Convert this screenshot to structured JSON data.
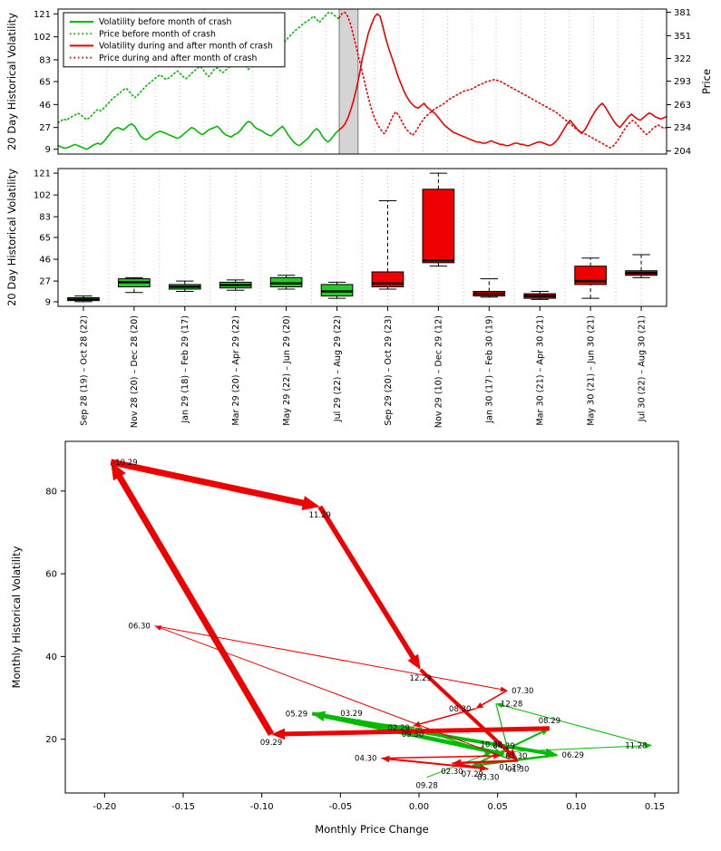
{
  "page": {
    "background": "#ffffff"
  },
  "colors": {
    "before": "#00BB00",
    "after": "#EE0000",
    "band": "#d4d4d4",
    "axis": "#000000",
    "grid": "#c8c8c8"
  },
  "chart_data": [
    {
      "type": "line",
      "title": "",
      "ylabel": "20 Day Historical Volatility",
      "y2label": "Price",
      "xlim": [
        0,
        100
      ],
      "ylim": [
        5,
        125
      ],
      "y2lim": [
        200,
        385
      ],
      "yticks": [
        9,
        27,
        46,
        65,
        83,
        102,
        121
      ],
      "y2ticks": [
        204,
        234,
        263,
        293,
        322,
        351,
        381
      ],
      "grid": true,
      "crash_band": [
        46.2,
        49.3
      ],
      "legend_position": "top-left",
      "legend": [
        {
          "label": "Volatility before month of crash",
          "color": "#00BB00",
          "style": "solid"
        },
        {
          "label": "Price before month of crash",
          "color": "#00BB00",
          "style": "dotted"
        },
        {
          "label": "Volatility during and after month of crash",
          "color": "#EE0000",
          "style": "solid"
        },
        {
          "label": "Price during and after month of crash",
          "color": "#EE0000",
          "style": "dotted"
        }
      ],
      "series": [
        {
          "name": "volatility-before",
          "axis": "left",
          "color": "#00BB00",
          "style": "solid",
          "x_start": 0,
          "x_end": 46.2,
          "values": [
            12,
            11,
            10,
            10,
            11,
            12,
            13,
            12,
            11,
            10,
            9,
            10,
            12,
            13,
            14,
            13,
            15,
            18,
            21,
            24,
            26,
            27,
            26,
            25,
            27,
            29,
            30,
            28,
            24,
            20,
            18,
            17,
            18,
            20,
            22,
            23,
            24,
            23,
            22,
            21,
            20,
            19,
            18,
            19,
            21,
            23,
            25,
            27,
            26,
            24,
            22,
            21,
            23,
            25,
            26,
            27,
            28,
            26,
            23,
            21,
            20,
            19,
            21,
            22,
            24,
            27,
            30,
            32,
            31,
            28,
            26,
            25,
            24,
            22,
            21,
            20,
            22,
            24,
            26,
            28,
            25,
            21,
            18,
            15,
            13,
            12,
            14,
            16,
            18,
            21,
            24,
            26,
            24,
            20,
            17,
            15,
            17,
            20,
            23,
            25
          ]
        },
        {
          "name": "price-before",
          "axis": "right",
          "color": "#00BB00",
          "style": "dotted",
          "x_start": 0,
          "x_end": 46.2,
          "values": [
            240,
            242,
            245,
            243,
            246,
            248,
            250,
            252,
            250,
            247,
            244,
            246,
            250,
            254,
            257,
            255,
            258,
            262,
            266,
            270,
            273,
            276,
            279,
            282,
            284,
            280,
            276,
            272,
            275,
            279,
            283,
            287,
            290,
            293,
            296,
            299,
            301,
            298,
            295,
            297,
            300,
            303,
            306,
            303,
            299,
            296,
            299,
            303,
            306,
            309,
            312,
            308,
            303,
            299,
            303,
            308,
            310,
            307,
            304,
            307,
            310,
            313,
            316,
            319,
            322,
            318,
            313,
            308,
            312,
            317,
            322,
            326,
            324,
            320,
            317,
            321,
            326,
            331,
            336,
            340,
            344,
            348,
            352,
            356,
            359,
            362,
            365,
            368,
            370,
            373,
            376,
            372,
            368,
            372,
            376,
            380,
            381,
            378,
            375,
            372
          ]
        },
        {
          "name": "volatility-after",
          "axis": "left",
          "color": "#EE0000",
          "style": "solid",
          "x_start": 46.2,
          "x_end": 100,
          "values": [
            25,
            27,
            30,
            35,
            42,
            50,
            60,
            72,
            85,
            95,
            105,
            112,
            118,
            121,
            119,
            110,
            100,
            92,
            85,
            78,
            70,
            64,
            58,
            53,
            49,
            46,
            44,
            43,
            45,
            47,
            44,
            42,
            40,
            38,
            35,
            32,
            29,
            27,
            25,
            23,
            22,
            21,
            20,
            19,
            18,
            17,
            16,
            15,
            15,
            14,
            14,
            15,
            16,
            15,
            14,
            13,
            13,
            12,
            12,
            13,
            14,
            14,
            13,
            13,
            12,
            12,
            13,
            14,
            15,
            15,
            14,
            13,
            12,
            13,
            15,
            18,
            22,
            26,
            30,
            33,
            30,
            27,
            24,
            22,
            25,
            29,
            34,
            38,
            42,
            45,
            47,
            44,
            40,
            36,
            32,
            29,
            27,
            30,
            33,
            36,
            38,
            36,
            34,
            33,
            35,
            37,
            39,
            38,
            36,
            35,
            34,
            35,
            36
          ]
        },
        {
          "name": "price-after",
          "axis": "right",
          "color": "#EE0000",
          "style": "dotted",
          "x_start": 46.2,
          "x_end": 100,
          "values": [
            374,
            379,
            381,
            376,
            366,
            352,
            337,
            322,
            307,
            292,
            277,
            263,
            251,
            242,
            235,
            230,
            226,
            232,
            240,
            248,
            254,
            250,
            243,
            236,
            231,
            227,
            224,
            228,
            234,
            240,
            245,
            249,
            252,
            255,
            258,
            260,
            262,
            264,
            267,
            270,
            272,
            274,
            276,
            278,
            280,
            281,
            282,
            283,
            285,
            287,
            289,
            290,
            292,
            293,
            294,
            295,
            294,
            293,
            291,
            289,
            287,
            285,
            283,
            281,
            279,
            277,
            275,
            273,
            271,
            269,
            267,
            265,
            263,
            261,
            259,
            257,
            255,
            253,
            250,
            247,
            244,
            241,
            238,
            235,
            232,
            230,
            228,
            226,
            224,
            222,
            220,
            218,
            216,
            214,
            212,
            210,
            208,
            210,
            214,
            219,
            225,
            231,
            236,
            240,
            243,
            240,
            236,
            232,
            228,
            225,
            228,
            232,
            235,
            237,
            235,
            233,
            234
          ]
        }
      ]
    },
    {
      "type": "boxplot",
      "title": "",
      "ylabel": "20 Day Historical Volatility",
      "ylim": [
        5,
        125
      ],
      "yticks": [
        9,
        27,
        46,
        65,
        83,
        102,
        121
      ],
      "grid": true,
      "boxes": [
        {
          "label": "Sep 28 (19) – Oct 28 (22)",
          "color": "#22CC22",
          "lo": 9,
          "q1": 10,
          "med": 11,
          "q3": 12.5,
          "hi": 14
        },
        {
          "label": "Nov 28 (20) – Dec 28 (20)",
          "color": "#22CC22",
          "lo": 17,
          "q1": 22,
          "med": 26,
          "q3": 29,
          "hi": 30
        },
        {
          "label": "Jan 29 (18) – Feb 29 (17)",
          "color": "#22CC22",
          "lo": 18,
          "q1": 20,
          "med": 22,
          "q3": 24,
          "hi": 27
        },
        {
          "label": "Mar 29 (20) – Apr 29 (22)",
          "color": "#22CC22",
          "lo": 19,
          "q1": 21,
          "med": 23.5,
          "q3": 26,
          "hi": 28
        },
        {
          "label": "May 29 (22) – Jun 29 (20)",
          "color": "#22CC22",
          "lo": 20,
          "q1": 22,
          "med": 25,
          "q3": 30,
          "hi": 32
        },
        {
          "label": "Jul 29 (22) – Aug 29 (22)",
          "color": "#22CC22",
          "lo": 12,
          "q1": 14,
          "med": 18,
          "q3": 24,
          "hi": 26
        },
        {
          "label": "Sep 29 (20) – Oct 29 (23)",
          "color": "#EE0000",
          "lo": 20,
          "q1": 22,
          "med": 25,
          "q3": 35,
          "hi": 97
        },
        {
          "label": "Nov 29 (10) – Dec 29 (12)",
          "color": "#EE0000",
          "lo": 40,
          "q1": 43,
          "med": 45,
          "q3": 107,
          "hi": 121
        },
        {
          "label": "Jan 30 (17) – Feb 30 (19)",
          "color": "#EE0000",
          "lo": 13,
          "q1": 14,
          "med": 16,
          "q3": 18,
          "hi": 29
        },
        {
          "label": "Mar 30 (21) – Apr 30 (21)",
          "color": "#EE0000",
          "lo": 11,
          "q1": 12,
          "med": 14,
          "q3": 16,
          "hi": 18
        },
        {
          "label": "May 30 (21) – Jun 30 (21)",
          "color": "#EE0000",
          "lo": 12,
          "q1": 24,
          "med": 27,
          "q3": 40,
          "hi": 47
        },
        {
          "label": "Jul 30 (22) – Aug 30 (21)",
          "color": "#EE0000",
          "lo": 30,
          "q1": 32,
          "med": 34,
          "q3": 36,
          "hi": 50
        }
      ]
    },
    {
      "type": "trajectory",
      "title": "",
      "xlabel": "Monthly Price Change",
      "ylabel": "Monthly Historical Volatility",
      "xlim": [
        -0.225,
        0.165
      ],
      "ylim": [
        7,
        92
      ],
      "xticks": [
        -0.2,
        -0.15,
        -0.1,
        -0.05,
        0.0,
        0.05,
        0.1,
        0.15
      ],
      "xtick_labels": [
        "-0.20",
        "-0.15",
        "-0.10",
        "-0.05",
        "0.00",
        "0.05",
        "0.10",
        "0.15"
      ],
      "yticks": [
        20,
        40,
        60,
        80
      ],
      "points": [
        {
          "label": "09.28",
          "x": 0.005,
          "y": 10.8,
          "anchor": "below"
        },
        {
          "label": "10.28",
          "x": 0.046,
          "y": 16.8,
          "anchor": "above"
        },
        {
          "label": "11.28",
          "x": 0.148,
          "y": 18.5,
          "anchor": "left"
        },
        {
          "label": "12.28",
          "x": 0.049,
          "y": 28.6,
          "anchor": "right"
        },
        {
          "label": "01.29",
          "x": 0.058,
          "y": 15.2,
          "anchor": "below"
        },
        {
          "label": "02.29",
          "x": -0.003,
          "y": 22.8,
          "anchor": "left"
        },
        {
          "label": "03.29",
          "x": -0.043,
          "y": 24.3,
          "anchor": "above"
        },
        {
          "label": "04.29",
          "x": 0.054,
          "y": 16.4,
          "anchor": "above"
        },
        {
          "label": "05.29",
          "x": -0.068,
          "y": 26.2,
          "anchor": "left"
        },
        {
          "label": "06.29",
          "x": 0.088,
          "y": 16.2,
          "anchor": "right"
        },
        {
          "label": "07.29",
          "x": 0.034,
          "y": 13.6,
          "anchor": "below"
        },
        {
          "label": "08.29",
          "x": 0.083,
          "y": 22.6,
          "anchor": "above"
        },
        {
          "label": "09.29",
          "x": -0.094,
          "y": 21.2,
          "anchor": "below"
        },
        {
          "label": "10.29",
          "x": -0.196,
          "y": 87.0,
          "anchor": "right"
        },
        {
          "label": "11.29",
          "x": -0.063,
          "y": 76.2,
          "anchor": "below"
        },
        {
          "label": "12.29",
          "x": 0.001,
          "y": 36.8,
          "anchor": "below"
        },
        {
          "label": "01.30",
          "x": 0.063,
          "y": 14.8,
          "anchor": "below"
        },
        {
          "label": "02.30",
          "x": 0.021,
          "y": 14.2,
          "anchor": "below"
        },
        {
          "label": "03.30",
          "x": 0.044,
          "y": 12.8,
          "anchor": "below"
        },
        {
          "label": "04.30",
          "x": -0.024,
          "y": 15.4,
          "anchor": "left"
        },
        {
          "label": "05.30",
          "x": 0.052,
          "y": 16.0,
          "anchor": "right"
        },
        {
          "label": "06.30",
          "x": -0.168,
          "y": 47.4,
          "anchor": "left"
        },
        {
          "label": "07.30",
          "x": 0.056,
          "y": 31.8,
          "anchor": "right"
        },
        {
          "label": "08.30",
          "x": 0.036,
          "y": 27.4,
          "anchor": "left"
        },
        {
          "label": "09.30",
          "x": -0.004,
          "y": 23.2,
          "anchor": "below"
        }
      ],
      "segments": [
        {
          "from": "09.28",
          "to": "10.28",
          "color": "#00BB00",
          "width": 1
        },
        {
          "from": "10.28",
          "to": "11.28",
          "color": "#00BB00",
          "width": 1
        },
        {
          "from": "11.28",
          "to": "12.28",
          "color": "#00BB00",
          "width": 1
        },
        {
          "from": "12.28",
          "to": "01.29",
          "color": "#00BB00",
          "width": 1.2
        },
        {
          "from": "01.29",
          "to": "02.29",
          "color": "#00BB00",
          "width": 1.5
        },
        {
          "from": "02.29",
          "to": "03.29",
          "color": "#00BB00",
          "width": 2
        },
        {
          "from": "03.29",
          "to": "04.29",
          "color": "#00BB00",
          "width": 2.5
        },
        {
          "from": "04.29",
          "to": "05.29",
          "color": "#00BB00",
          "width": 4.5
        },
        {
          "from": "05.29",
          "to": "06.29",
          "color": "#00BB00",
          "width": 4
        },
        {
          "from": "06.29",
          "to": "07.29",
          "color": "#00BB00",
          "width": 2.5
        },
        {
          "from": "07.29",
          "to": "08.29",
          "color": "#00BB00",
          "width": 2
        },
        {
          "from": "08.29",
          "to": "09.29",
          "color": "#EE0000",
          "width": 5
        },
        {
          "from": "09.29",
          "to": "10.29",
          "color": "#EE0000",
          "width": 7
        },
        {
          "from": "10.29",
          "to": "11.29",
          "color": "#EE0000",
          "width": 7
        },
        {
          "from": "11.29",
          "to": "12.29",
          "color": "#EE0000",
          "width": 5.5
        },
        {
          "from": "12.29",
          "to": "01.30",
          "color": "#EE0000",
          "width": 4
        },
        {
          "from": "01.30",
          "to": "02.30",
          "color": "#EE0000",
          "width": 2.5
        },
        {
          "from": "02.30",
          "to": "03.30",
          "color": "#EE0000",
          "width": 2
        },
        {
          "from": "03.30",
          "to": "04.30",
          "color": "#EE0000",
          "width": 2
        },
        {
          "from": "04.30",
          "to": "05.30",
          "color": "#EE0000",
          "width": 1.5
        },
        {
          "from": "05.30",
          "to": "06.30",
          "color": "#EE0000",
          "width": 1
        },
        {
          "from": "06.30",
          "to": "07.30",
          "color": "#EE0000",
          "width": 1
        },
        {
          "from": "07.30",
          "to": "08.30",
          "color": "#EE0000",
          "width": 1.5
        },
        {
          "from": "08.30",
          "to": "09.30",
          "color": "#EE0000",
          "width": 1.5
        }
      ]
    }
  ]
}
